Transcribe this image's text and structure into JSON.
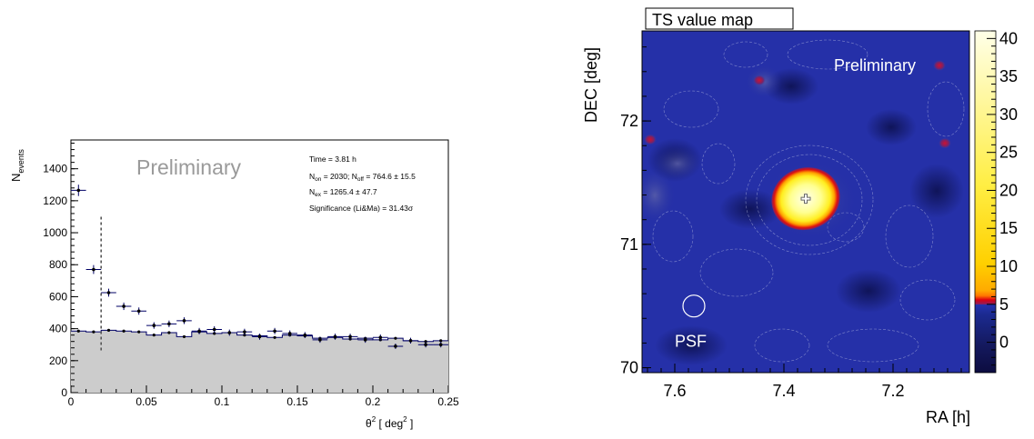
{
  "chart_data": [
    {
      "type": "scatter",
      "xlabel_prefix": "θ",
      "xlabel_mid": " [ deg",
      "xlabel_suffix": " ]",
      "xlabel_exp": "2",
      "ylabel_main": "N",
      "ylabel_sub": "events",
      "xlim": [
        0,
        0.25
      ],
      "ylim": [
        0,
        1580
      ],
      "x_ticks": [
        "0",
        "0.05",
        "0.1",
        "0.15",
        "0.2",
        "0.25"
      ],
      "y_ticks": [
        "0",
        "200",
        "400",
        "600",
        "800",
        "1000",
        "1200",
        "1400"
      ],
      "watermark": "Preliminary",
      "cut_line_x": 0.02,
      "stats": {
        "time": "Time = 3.81 h",
        "non_label": "N",
        "non_sub": "on",
        "non_value": " = 2030; N",
        "noff_sub": "off",
        "noff_value": " = 764.6 ± 15.5",
        "nex_label": "N",
        "nex_sub": "ex",
        "nex_value": " = 1265.4 ± 47.7",
        "significance": "Significance (Li&Ma) = 31.43σ"
      },
      "series": [
        {
          "role": "on",
          "color": "#000066",
          "bin_width": 0.01,
          "x": [
            0.005,
            0.015,
            0.025,
            0.035,
            0.045,
            0.055,
            0.065,
            0.075,
            0.085,
            0.095,
            0.105,
            0.115,
            0.125,
            0.135,
            0.145,
            0.155,
            0.165,
            0.175,
            0.185,
            0.195,
            0.205,
            0.215,
            0.225,
            0.235,
            0.245
          ],
          "y": [
            1265,
            770,
            625,
            540,
            510,
            420,
            430,
            450,
            385,
            395,
            375,
            380,
            350,
            385,
            370,
            360,
            330,
            350,
            350,
            330,
            345,
            290,
            325,
            300,
            300
          ]
        },
        {
          "role": "off",
          "color": "#000066",
          "fill": "#cccccc",
          "bin_width": 0.01,
          "x": [
            0.005,
            0.015,
            0.025,
            0.035,
            0.045,
            0.055,
            0.065,
            0.075,
            0.085,
            0.095,
            0.105,
            0.115,
            0.125,
            0.135,
            0.145,
            0.155,
            0.165,
            0.175,
            0.185,
            0.195,
            0.205,
            0.215,
            0.225,
            0.235,
            0.245
          ],
          "y": [
            385,
            380,
            390,
            385,
            380,
            360,
            375,
            350,
            380,
            370,
            375,
            360,
            355,
            345,
            360,
            355,
            340,
            345,
            335,
            340,
            330,
            340,
            325,
            320,
            325
          ]
        }
      ]
    },
    {
      "type": "heatmap",
      "title": "TS value map",
      "xlabel": "RA [h]",
      "ylabel": "DEC [deg]",
      "xlim": [
        7.66,
        7.06
      ],
      "ylim": [
        69.96,
        72.73
      ],
      "x_ticks": [
        "7.6",
        "7.4",
        "7.2"
      ],
      "y_ticks": [
        "70",
        "71",
        "72"
      ],
      "x_tick_values": [
        7.6,
        7.4,
        7.2
      ],
      "y_tick_values": [
        70,
        71,
        72
      ],
      "watermark": "Preliminary",
      "psf_label": "PSF",
      "psf_center": [
        7.565,
        70.5
      ],
      "source_peak": {
        "ra": 7.36,
        "dec": 71.37,
        "ts": 41
      },
      "colorbar": {
        "min": -4,
        "max": 41,
        "ticks": [
          "0",
          "5",
          "10",
          "15",
          "20",
          "25",
          "30",
          "35",
          "40"
        ],
        "tick_values": [
          0,
          5,
          10,
          15,
          20,
          25,
          30,
          35,
          40
        ]
      },
      "hotspots": [
        {
          "ra": 7.445,
          "dec": 72.33
        },
        {
          "ra": 7.115,
          "dec": 72.45
        },
        {
          "ra": 7.105,
          "dec": 71.82
        },
        {
          "ra": 7.645,
          "dec": 71.85
        }
      ]
    }
  ]
}
